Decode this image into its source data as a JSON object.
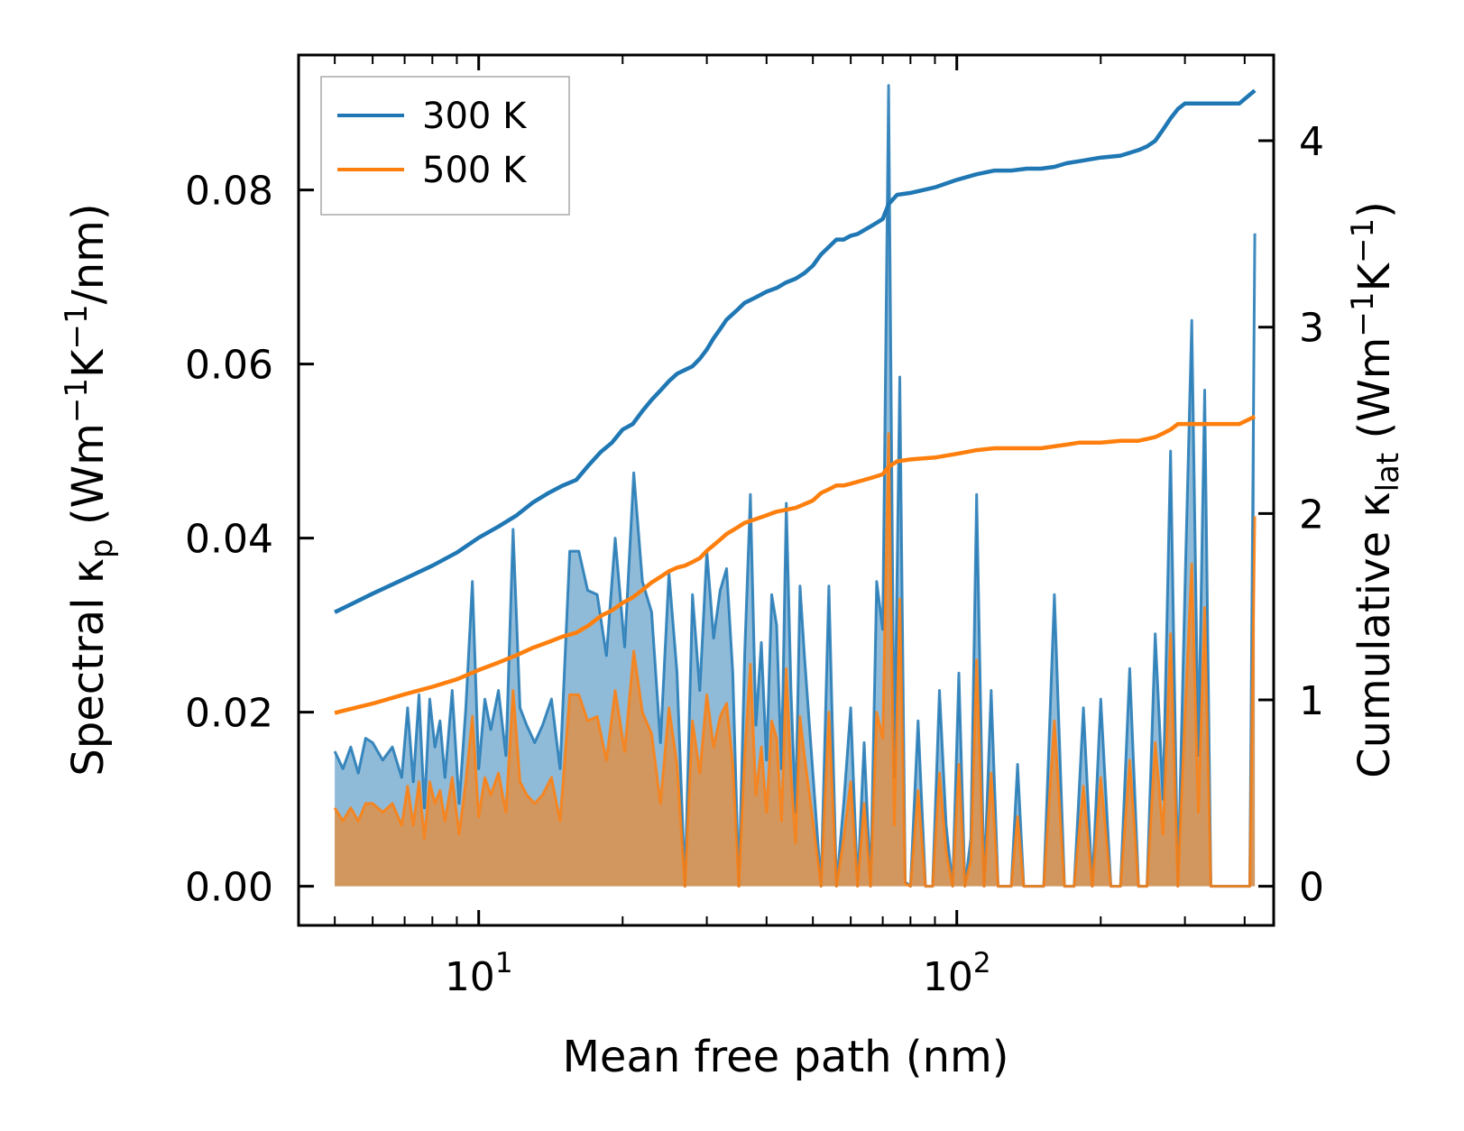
{
  "chart_data": {
    "type": "area",
    "xscale": "log",
    "xlabel": "Mean free path (nm)",
    "ylabel_left": {
      "prefix": "Spectral κ",
      "sub": "p",
      "unit_open": " (Wm",
      "sup1": "−1",
      "mid": "K",
      "sup2": "−1",
      "tail": "/nm)"
    },
    "ylabel_right": {
      "prefix": "Cumulative κ",
      "sub": "lat",
      "unit_open": " (Wm",
      "sup1": "−1",
      "mid": "K",
      "sup2": "−1",
      "tail": ")"
    },
    "xlim": [
      4.2,
      460
    ],
    "ylim_left": [
      -0.0045,
      0.0955
    ],
    "ylim_right": [
      -0.21,
      4.46
    ],
    "xticks": [
      {
        "value": 10,
        "base": "10",
        "exp": "1"
      },
      {
        "value": 100,
        "base": "10",
        "exp": "2"
      }
    ],
    "yticks_left": [
      {
        "value": 0.0,
        "label": "0.00"
      },
      {
        "value": 0.02,
        "label": "0.02"
      },
      {
        "value": 0.04,
        "label": "0.04"
      },
      {
        "value": 0.06,
        "label": "0.06"
      },
      {
        "value": 0.08,
        "label": "0.08"
      }
    ],
    "yticks_right": [
      {
        "value": 0,
        "label": "0"
      },
      {
        "value": 1,
        "label": "1"
      },
      {
        "value": 2,
        "label": "2"
      },
      {
        "value": 3,
        "label": "3"
      },
      {
        "value": 4,
        "label": "4"
      }
    ],
    "legend": {
      "position": "top-left",
      "entries": [
        {
          "name": "300 K",
          "color": "#1f77b4"
        },
        {
          "name": "500 K",
          "color": "#ff7f0e"
        }
      ]
    },
    "series": [
      {
        "name": "300 K",
        "color": "#1f77b4",
        "spectral": {
          "x": [
            5.0,
            5.2,
            5.4,
            5.6,
            5.8,
            6.0,
            6.3,
            6.6,
            6.9,
            7.1,
            7.3,
            7.5,
            7.7,
            7.9,
            8.1,
            8.3,
            8.5,
            8.8,
            9.1,
            9.4,
            9.7,
            10.0,
            10.3,
            10.6,
            11.0,
            11.4,
            11.8,
            12.2,
            12.6,
            13.1,
            13.6,
            14.2,
            14.8,
            15.5,
            16.2,
            16.9,
            17.7,
            18.5,
            19.3,
            20.2,
            21.1,
            22.0,
            23.0,
            24.0,
            25.0,
            26.0,
            27.0,
            28.0,
            29.0,
            30.0,
            31.0,
            32.0,
            33.0,
            34.0,
            35.0,
            36.0,
            37.0,
            38.0,
            39.0,
            40.0,
            41.0,
            42.0,
            43.0,
            44.0,
            45.0,
            46.0,
            47.0,
            48.0,
            50.0,
            52.0,
            54.0,
            56.0,
            58.0,
            60.0,
            62.0,
            64.0,
            66.0,
            68.0,
            70.0,
            72.0,
            74.0,
            76.0,
            78.0,
            80.0,
            83.0,
            86.0,
            89.0,
            92.0,
            95.0,
            98.0,
            101.0,
            104.0,
            107.0,
            110.0,
            114.0,
            118.0,
            122.0,
            126.0,
            130.0,
            134.0,
            138.0,
            145.0,
            152.0,
            160.0,
            168.0,
            176.0,
            184.0,
            192.0,
            200.0,
            210.0,
            220.0,
            230.0,
            240.0,
            250.0,
            260.0,
            270.0,
            280.0,
            290.0,
            300.0,
            310.0,
            320.0,
            330.0,
            340.0,
            350.0,
            360.0,
            370.0,
            380.0,
            390.0,
            400.0,
            410.0,
            420.0
          ],
          "values": [
            0.0155,
            0.0135,
            0.016,
            0.013,
            0.017,
            0.0165,
            0.0145,
            0.016,
            0.0125,
            0.0205,
            0.012,
            0.022,
            0.009,
            0.0215,
            0.016,
            0.019,
            0.0125,
            0.0225,
            0.0095,
            0.0205,
            0.035,
            0.0135,
            0.0215,
            0.018,
            0.0225,
            0.015,
            0.041,
            0.0205,
            0.0185,
            0.0165,
            0.0185,
            0.0215,
            0.0135,
            0.0385,
            0.0385,
            0.034,
            0.0335,
            0.0265,
            0.04,
            0.0275,
            0.0475,
            0.035,
            0.0315,
            0.0165,
            0.036,
            0.0245,
            0.0,
            0.0335,
            0.0225,
            0.0385,
            0.0285,
            0.034,
            0.0365,
            0.0245,
            0.0,
            0.0265,
            0.045,
            0.0185,
            0.028,
            0.0145,
            0.0335,
            0.03,
            0.0135,
            0.044,
            0.0225,
            0.0085,
            0.0345,
            0.0265,
            0.013,
            0.0,
            0.0345,
            0.0,
            0.0095,
            0.0205,
            0.0,
            0.0165,
            0.0,
            0.035,
            0.0295,
            0.092,
            0.0125,
            0.0585,
            0.0005,
            0.0,
            0.019,
            0.0,
            0.0,
            0.0225,
            0.007,
            0.0,
            0.0245,
            0.0,
            0.0055,
            0.045,
            0.0,
            0.0225,
            0.0,
            0.0,
            0.0,
            0.014,
            0.0,
            0.0,
            0.0,
            0.0335,
            0.0,
            0.0,
            0.0205,
            0.0,
            0.0215,
            0.0,
            0.0,
            0.025,
            0.0,
            0.0,
            0.029,
            0.01,
            0.05,
            0.0,
            0.034,
            0.065,
            0.015,
            0.057,
            0.0,
            0.0,
            0.0,
            0.0,
            0.0,
            0.0,
            0.0,
            0.0,
            0.075
          ]
        },
        "cumulative": {
          "x": [
            5.0,
            6.0,
            7.0,
            8.0,
            9.0,
            10.0,
            11.0,
            12.0,
            13.0,
            14.0,
            15.0,
            16.0,
            17.0,
            18.0,
            19.0,
            20.0,
            21.0,
            22.0,
            23.0,
            24.0,
            25.0,
            26.0,
            27.0,
            28.0,
            29.0,
            30.0,
            31.0,
            32.0,
            33.0,
            34.0,
            35.0,
            36.0,
            38.0,
            40.0,
            42.0,
            44.0,
            46.0,
            48.0,
            50.0,
            52.0,
            54.0,
            56.0,
            58.0,
            60.0,
            62.0,
            64.0,
            66.0,
            68.0,
            70.0,
            72.0,
            75.0,
            80.0,
            90.0,
            100.0,
            110.0,
            120.0,
            130.0,
            140.0,
            150.0,
            160.0,
            170.0,
            180.0,
            200.0,
            220.0,
            240.0,
            250.0,
            260.0,
            270.0,
            280.0,
            290.0,
            300.0,
            330.0,
            360.0,
            390.0,
            420.0
          ],
          "values": [
            1.47,
            1.57,
            1.65,
            1.72,
            1.79,
            1.87,
            1.93,
            1.99,
            2.06,
            2.11,
            2.15,
            2.18,
            2.26,
            2.33,
            2.38,
            2.45,
            2.48,
            2.55,
            2.61,
            2.66,
            2.71,
            2.75,
            2.77,
            2.79,
            2.83,
            2.88,
            2.94,
            2.99,
            3.04,
            3.07,
            3.1,
            3.13,
            3.16,
            3.19,
            3.21,
            3.24,
            3.26,
            3.29,
            3.33,
            3.39,
            3.43,
            3.47,
            3.47,
            3.49,
            3.5,
            3.52,
            3.54,
            3.56,
            3.58,
            3.66,
            3.71,
            3.72,
            3.75,
            3.79,
            3.82,
            3.84,
            3.84,
            3.85,
            3.85,
            3.86,
            3.88,
            3.89,
            3.91,
            3.92,
            3.95,
            3.97,
            4.0,
            4.06,
            4.12,
            4.17,
            4.2,
            4.2,
            4.2,
            4.2,
            4.27
          ]
        }
      },
      {
        "name": "500 K",
        "color": "#ff7f0e",
        "spectral": {
          "x": [
            5.0,
            5.2,
            5.4,
            5.6,
            5.8,
            6.0,
            6.3,
            6.6,
            6.9,
            7.1,
            7.3,
            7.5,
            7.7,
            7.9,
            8.1,
            8.3,
            8.5,
            8.8,
            9.1,
            9.4,
            9.7,
            10.0,
            10.3,
            10.6,
            11.0,
            11.4,
            11.8,
            12.2,
            12.6,
            13.1,
            13.6,
            14.2,
            14.8,
            15.5,
            16.2,
            16.9,
            17.7,
            18.5,
            19.3,
            20.2,
            21.1,
            22.0,
            23.0,
            24.0,
            25.0,
            26.0,
            27.0,
            28.0,
            29.0,
            30.0,
            31.0,
            32.0,
            33.0,
            34.0,
            35.0,
            36.0,
            37.0,
            38.0,
            39.0,
            40.0,
            41.0,
            42.0,
            43.0,
            44.0,
            45.0,
            46.0,
            47.0,
            48.0,
            50.0,
            52.0,
            54.0,
            56.0,
            58.0,
            60.0,
            62.0,
            64.0,
            66.0,
            68.0,
            70.0,
            72.0,
            74.0,
            76.0,
            78.0,
            80.0,
            83.0,
            86.0,
            89.0,
            92.0,
            95.0,
            98.0,
            101.0,
            104.0,
            107.0,
            110.0,
            114.0,
            118.0,
            122.0,
            126.0,
            130.0,
            134.0,
            138.0,
            145.0,
            152.0,
            160.0,
            168.0,
            176.0,
            184.0,
            192.0,
            200.0,
            210.0,
            220.0,
            230.0,
            240.0,
            250.0,
            260.0,
            270.0,
            280.0,
            290.0,
            300.0,
            310.0,
            320.0,
            330.0,
            340.0,
            350.0,
            360.0,
            370.0,
            380.0,
            390.0,
            400.0,
            410.0,
            420.0
          ],
          "values": [
            0.009,
            0.0075,
            0.009,
            0.0075,
            0.0095,
            0.0095,
            0.0085,
            0.0095,
            0.007,
            0.0115,
            0.007,
            0.012,
            0.0055,
            0.012,
            0.0095,
            0.011,
            0.0075,
            0.0125,
            0.006,
            0.012,
            0.0195,
            0.008,
            0.0125,
            0.0105,
            0.013,
            0.0085,
            0.0225,
            0.012,
            0.0105,
            0.0095,
            0.0105,
            0.0125,
            0.0075,
            0.022,
            0.022,
            0.019,
            0.0195,
            0.0145,
            0.0225,
            0.0155,
            0.027,
            0.02,
            0.0175,
            0.0095,
            0.0205,
            0.014,
            0.0,
            0.019,
            0.013,
            0.022,
            0.016,
            0.0195,
            0.021,
            0.014,
            0.0,
            0.015,
            0.0255,
            0.0105,
            0.016,
            0.0085,
            0.019,
            0.017,
            0.0075,
            0.025,
            0.013,
            0.005,
            0.0195,
            0.015,
            0.0075,
            0.0,
            0.02,
            0.0,
            0.0055,
            0.012,
            0.0,
            0.0095,
            0.0,
            0.02,
            0.017,
            0.052,
            0.007,
            0.033,
            0.0003,
            0.0,
            0.011,
            0.0,
            0.0,
            0.013,
            0.004,
            0.0,
            0.014,
            0.0,
            0.003,
            0.026,
            0.0,
            0.013,
            0.0,
            0.0,
            0.0,
            0.008,
            0.0,
            0.0,
            0.0,
            0.019,
            0.0,
            0.0,
            0.0115,
            0.0,
            0.0125,
            0.0,
            0.0,
            0.0145,
            0.0,
            0.0,
            0.0165,
            0.006,
            0.029,
            0.0,
            0.0195,
            0.037,
            0.0085,
            0.032,
            0.0,
            0.0,
            0.0,
            0.0,
            0.0,
            0.0,
            0.0,
            0.0,
            0.0425
          ]
        },
        "cumulative": {
          "x": [
            5.0,
            6.0,
            7.0,
            8.0,
            9.0,
            10.0,
            11.0,
            12.0,
            13.0,
            14.0,
            15.0,
            16.0,
            17.0,
            18.0,
            19.0,
            20.0,
            21.0,
            22.0,
            23.0,
            24.0,
            25.0,
            26.0,
            27.0,
            28.0,
            29.0,
            30.0,
            31.0,
            32.0,
            33.0,
            34.0,
            35.0,
            36.0,
            38.0,
            40.0,
            42.0,
            44.0,
            46.0,
            48.0,
            50.0,
            52.0,
            54.0,
            56.0,
            58.0,
            60.0,
            62.0,
            64.0,
            66.0,
            68.0,
            70.0,
            72.0,
            75.0,
            80.0,
            90.0,
            100.0,
            110.0,
            120.0,
            130.0,
            140.0,
            150.0,
            160.0,
            170.0,
            180.0,
            200.0,
            220.0,
            240.0,
            250.0,
            260.0,
            270.0,
            280.0,
            290.0,
            300.0,
            330.0,
            360.0,
            390.0,
            420.0
          ],
          "values": [
            0.93,
            0.98,
            1.03,
            1.07,
            1.11,
            1.16,
            1.2,
            1.24,
            1.28,
            1.31,
            1.34,
            1.36,
            1.4,
            1.45,
            1.48,
            1.52,
            1.55,
            1.59,
            1.63,
            1.66,
            1.69,
            1.71,
            1.72,
            1.74,
            1.76,
            1.8,
            1.83,
            1.86,
            1.89,
            1.91,
            1.93,
            1.95,
            1.97,
            1.99,
            2.01,
            2.02,
            2.03,
            2.05,
            2.07,
            2.11,
            2.13,
            2.15,
            2.15,
            2.16,
            2.17,
            2.18,
            2.19,
            2.2,
            2.21,
            2.25,
            2.28,
            2.29,
            2.3,
            2.32,
            2.34,
            2.35,
            2.35,
            2.35,
            2.35,
            2.36,
            2.37,
            2.38,
            2.38,
            2.39,
            2.39,
            2.4,
            2.41,
            2.43,
            2.45,
            2.48,
            2.48,
            2.48,
            2.48,
            2.48,
            2.52
          ]
        }
      }
    ]
  }
}
